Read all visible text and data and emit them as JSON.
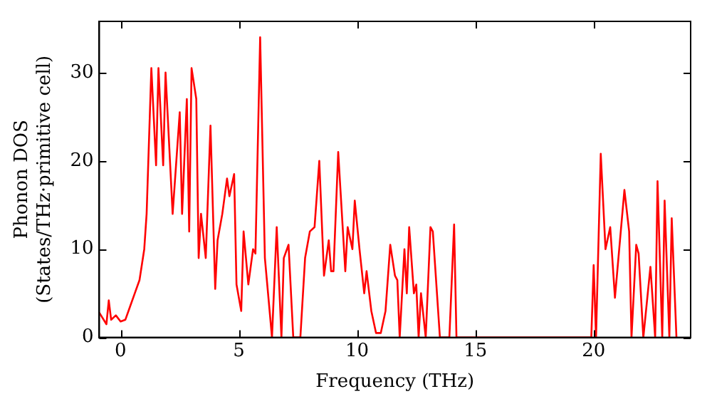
{
  "chart_data": {
    "type": "line",
    "xlabel": "Frequency (THz)",
    "ylabel": "Phonon DOS\n(States/THz·primitive cell)",
    "xlim": [
      -0.9,
      24.1
    ],
    "ylim": [
      0,
      35.8
    ],
    "xticks": [
      0,
      5,
      10,
      15,
      20
    ],
    "yticks": [
      0,
      10,
      20,
      30
    ],
    "grid": false,
    "legend": false,
    "marker": "none",
    "line_style": "solid",
    "series": [
      {
        "color": "#ff0000",
        "x": [
          -0.9,
          -0.6,
          -0.5,
          -0.4,
          -0.2,
          0,
          0.2,
          0.4,
          0.6,
          0.8,
          1.0,
          1.1,
          1.3,
          1.5,
          1.6,
          1.8,
          1.9,
          2.2,
          2.5,
          2.6,
          2.8,
          2.9,
          3.0,
          3.2,
          3.3,
          3.4,
          3.6,
          3.8,
          4.0,
          4.1,
          4.3,
          4.5,
          4.6,
          4.8,
          4.9,
          5.1,
          5.2,
          5.4,
          5.6,
          5.7,
          5.9,
          6.1,
          6.4,
          6.6,
          6.8,
          6.9,
          7.1,
          7.3,
          7.6,
          7.8,
          8.0,
          8.2,
          8.4,
          8.6,
          8.8,
          8.9,
          9.0,
          9.2,
          9.5,
          9.6,
          9.8,
          9.9,
          10.1,
          10.3,
          10.4,
          10.6,
          10.8,
          11.0,
          11.2,
          11.4,
          11.6,
          11.7,
          11.8,
          12.0,
          12.1,
          12.2,
          12.4,
          12.5,
          12.6,
          12.7,
          12.9,
          13.1,
          13.2,
          13.5,
          13.9,
          14.1,
          14.2,
          19.9,
          20.0,
          20.1,
          20.3,
          20.5,
          20.7,
          20.9,
          21.3,
          21.5,
          21.6,
          21.8,
          21.9,
          22.1,
          22.4,
          22.6,
          22.7,
          22.9,
          23.0,
          23.2,
          23.3,
          23.5
        ],
        "values": [
          2.8,
          1.5,
          4.2,
          2,
          2.5,
          1.8,
          2,
          3.5,
          5,
          6.5,
          10,
          14,
          30.5,
          19.5,
          30.5,
          19.5,
          30,
          14,
          25.5,
          14,
          27,
          12,
          30.5,
          27,
          9,
          14,
          9,
          24,
          5.5,
          11,
          14,
          18,
          16,
          18.5,
          6,
          3,
          12,
          6,
          10,
          9.5,
          34,
          9,
          0,
          12.5,
          0,
          9,
          10.5,
          0,
          0,
          9,
          12,
          12.5,
          20,
          7,
          11,
          7.5,
          7.5,
          21,
          7.5,
          12.5,
          10,
          15.5,
          10,
          5,
          7.5,
          3,
          0.5,
          0.5,
          3,
          10.5,
          7,
          6.5,
          0,
          10,
          5,
          12.5,
          5,
          6,
          0,
          5,
          0,
          12.5,
          12,
          0,
          0,
          12.8,
          0,
          0,
          8.2,
          0,
          20.8,
          10,
          12.5,
          4.5,
          16.7,
          12,
          0,
          10.5,
          9.5,
          0,
          8,
          0,
          17.7,
          0,
          15.5,
          0,
          13.5,
          0
        ]
      }
    ]
  }
}
